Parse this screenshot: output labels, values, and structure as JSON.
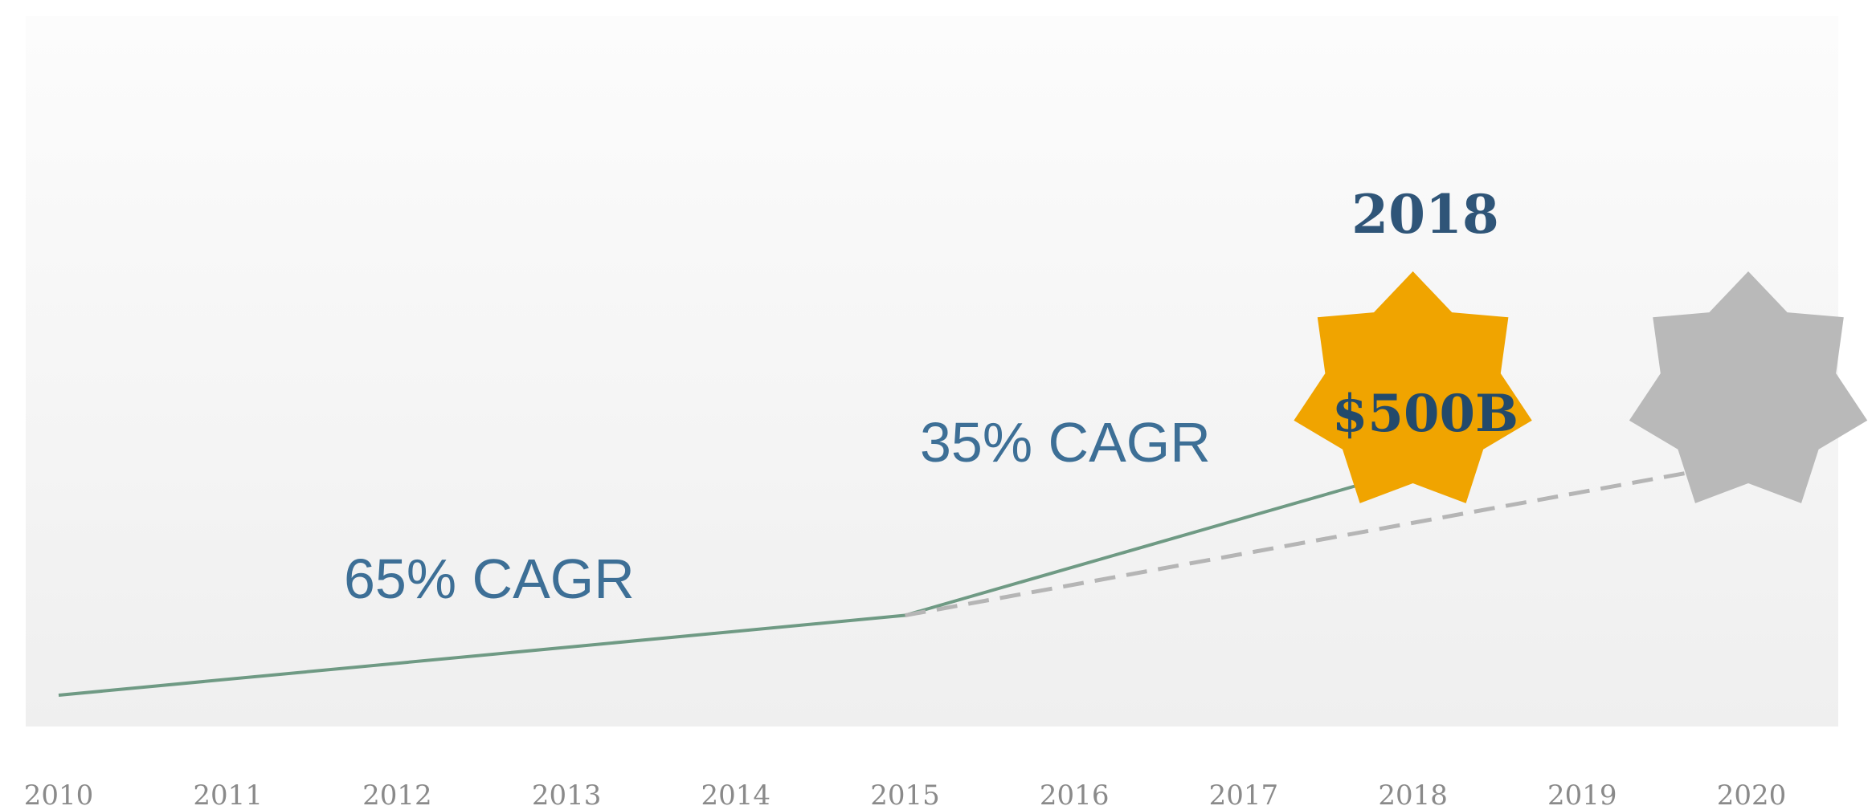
{
  "chart_data": {
    "type": "line",
    "x": [
      "2010",
      "2011",
      "2012",
      "2013",
      "2014",
      "2015",
      "2016",
      "2017",
      "2018",
      "2019",
      "2020"
    ],
    "series": [
      {
        "style": "solid",
        "color": "#6f9a84",
        "points": [
          [
            "2010",
            0.0
          ],
          [
            "2015",
            0.145
          ],
          [
            "2018",
            0.41
          ]
        ]
      },
      {
        "style": "dashed",
        "color": "#b5b5b5",
        "points": [
          [
            "2015",
            0.145
          ],
          [
            "2020",
            0.425
          ]
        ]
      }
    ],
    "annotations": [
      {
        "text": "65% CAGR",
        "color": "#3d6f96"
      },
      {
        "text": "35% CAGR",
        "color": "#3d6f96"
      }
    ],
    "markers": [
      {
        "year_label": "2018",
        "value_label": "$500B",
        "shape": "star-7",
        "color": "#f0a400",
        "x": "2018"
      },
      {
        "shape": "star-7",
        "color": "#b9b9b9",
        "x": "2020"
      }
    ],
    "grid": false,
    "legend": "none"
  }
}
